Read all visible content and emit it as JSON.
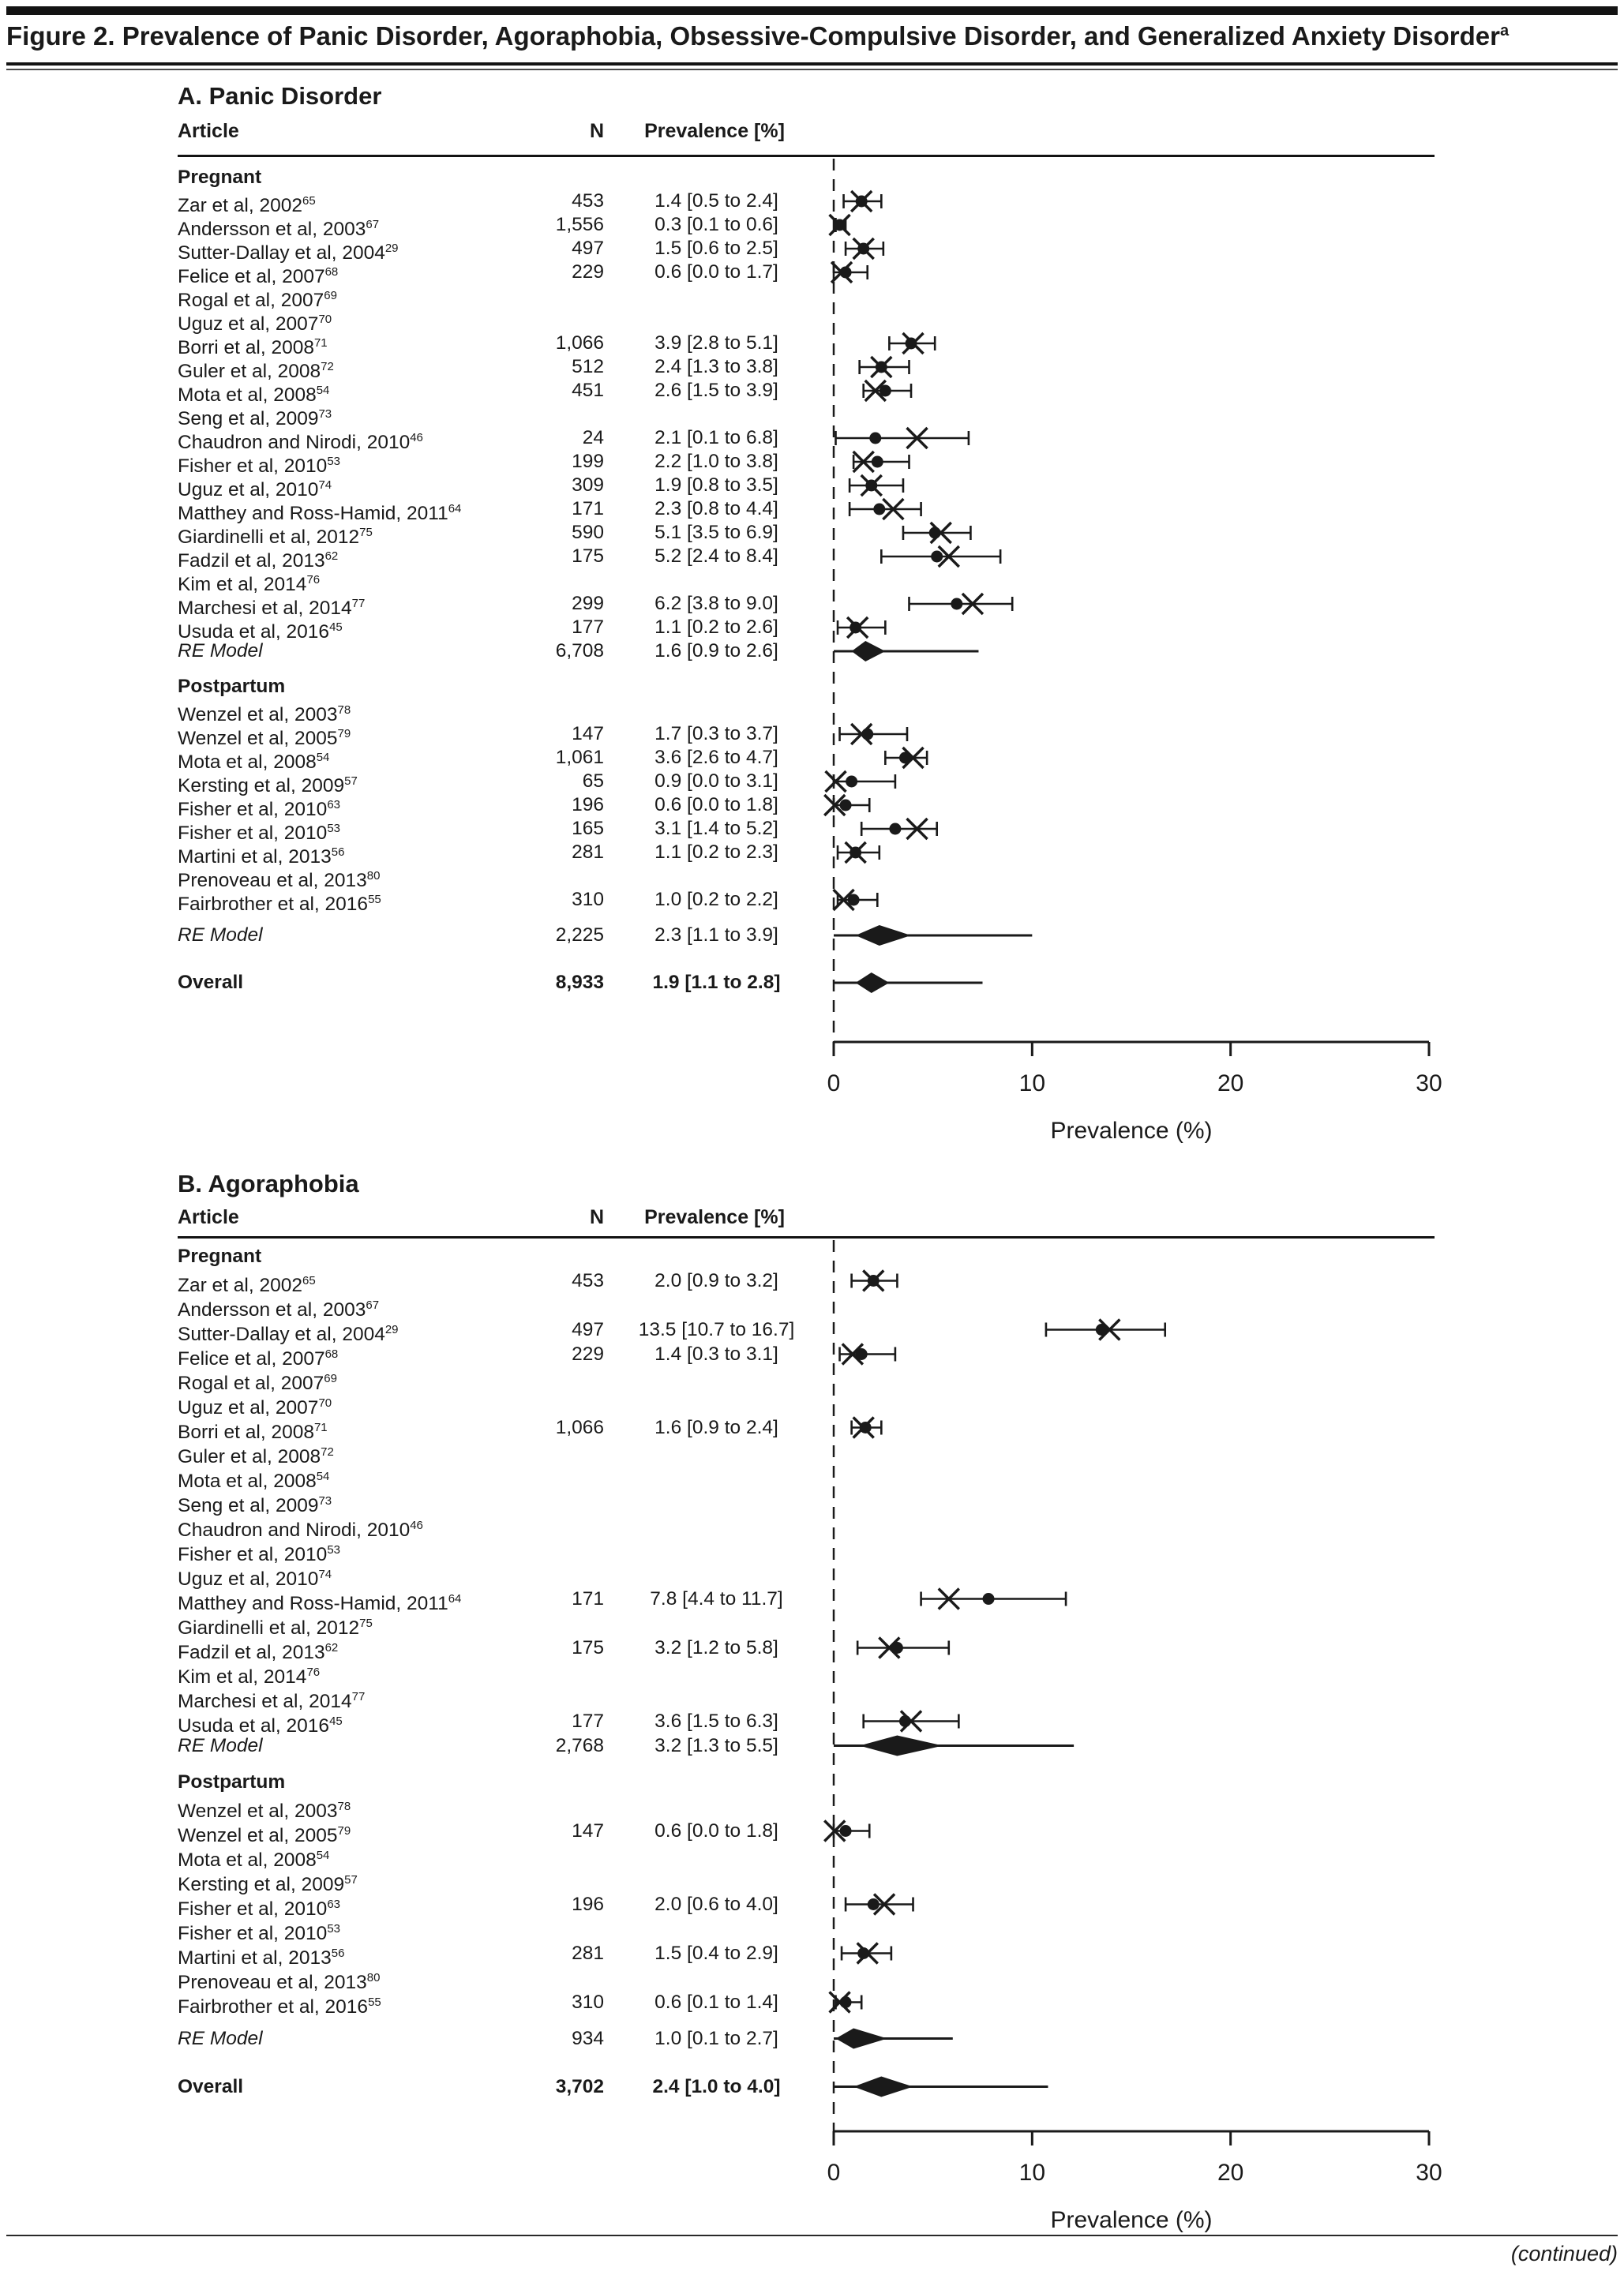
{
  "figure": {
    "title": "Figure 2. Prevalence of Panic Disorder, Agoraphobia, Obsessive-Compulsive Disorder, and Generalized Anxiety Disorder",
    "title_sup": "a",
    "continued": "(continued)"
  },
  "columns": {
    "article": "Article",
    "n": "N",
    "prevalence": "Prevalence [%]"
  },
  "axis": {
    "label": "Prevalence (%)",
    "ticks": [
      0,
      10,
      20,
      30
    ],
    "min": 0,
    "max": 30
  },
  "chart_data": [
    {
      "type": "forest",
      "panel_label": "A. Panic Disorder",
      "xlabel": "Prevalence (%)",
      "xlim": [
        0,
        30
      ],
      "xticks": [
        0,
        10,
        20,
        30
      ],
      "rows": [
        {
          "kind": "group",
          "article": "Pregnant"
        },
        {
          "kind": "study",
          "article": "Zar et al, 2002",
          "sup": "65",
          "n": "453",
          "prev": "1.4 [0.5 to 2.4]",
          "est": 1.4,
          "lo": 0.5,
          "hi": 2.4,
          "x": 1.4
        },
        {
          "kind": "study",
          "article": "Andersson et al, 2003",
          "sup": "67",
          "n": "1,556",
          "prev": "0.3 [0.1 to 0.6]",
          "est": 0.3,
          "lo": 0.1,
          "hi": 0.6,
          "x": 0.3
        },
        {
          "kind": "study",
          "article": "Sutter-Dallay et al, 2004",
          "sup": "29",
          "n": "497",
          "prev": "1.5 [0.6 to 2.5]",
          "est": 1.5,
          "lo": 0.6,
          "hi": 2.5,
          "x": 1.5
        },
        {
          "kind": "study",
          "article": "Felice et al, 2007",
          "sup": "68",
          "n": "229",
          "prev": "0.6 [0.0 to 1.7]",
          "est": 0.6,
          "lo": 0.0,
          "hi": 1.7,
          "x": 0.4
        },
        {
          "kind": "study",
          "article": "Rogal et al, 2007",
          "sup": "69"
        },
        {
          "kind": "study",
          "article": "Uguz et al, 2007",
          "sup": "70"
        },
        {
          "kind": "study",
          "article": "Borri et al, 2008",
          "sup": "71",
          "n": "1,066",
          "prev": "3.9 [2.8 to 5.1]",
          "est": 3.9,
          "lo": 2.8,
          "hi": 5.1,
          "x": 4.0
        },
        {
          "kind": "study",
          "article": "Guler et al, 2008",
          "sup": "72",
          "n": "512",
          "prev": "2.4 [1.3 to 3.8]",
          "est": 2.4,
          "lo": 1.3,
          "hi": 3.8,
          "x": 2.4
        },
        {
          "kind": "study",
          "article": "Mota et al, 2008",
          "sup": "54",
          "n": "451",
          "prev": "2.6 [1.5 to 3.9]",
          "est": 2.6,
          "lo": 1.5,
          "hi": 3.9,
          "x": 2.1
        },
        {
          "kind": "study",
          "article": "Seng et al, 2009",
          "sup": "73"
        },
        {
          "kind": "study",
          "article": "Chaudron and Nirodi, 2010",
          "sup": "46",
          "n": "24",
          "prev": "2.1 [0.1 to 6.8]",
          "est": 2.1,
          "lo": 0.1,
          "hi": 6.8,
          "x": 4.2
        },
        {
          "kind": "study",
          "article": "Fisher et al, 2010",
          "sup": "53",
          "n": "199",
          "prev": "2.2 [1.0 to 3.8]",
          "est": 2.2,
          "lo": 1.0,
          "hi": 3.8,
          "x": 1.5
        },
        {
          "kind": "study",
          "article": "Uguz et al, 2010",
          "sup": "74",
          "n": "309",
          "prev": "1.9 [0.8 to 3.5]",
          "est": 1.9,
          "lo": 0.8,
          "hi": 3.5,
          "x": 1.9
        },
        {
          "kind": "study",
          "article": "Matthey and Ross-Hamid, 2011",
          "sup": "64",
          "n": "171",
          "prev": "2.3 [0.8 to 4.4]",
          "est": 2.3,
          "lo": 0.8,
          "hi": 4.4,
          "x": 3.0
        },
        {
          "kind": "study",
          "article": "Giardinelli et al, 2012",
          "sup": "75",
          "n": "590",
          "prev": "5.1 [3.5 to 6.9]",
          "est": 5.1,
          "lo": 3.5,
          "hi": 6.9,
          "x": 5.4
        },
        {
          "kind": "study",
          "article": "Fadzil et al, 2013",
          "sup": "62",
          "n": "175",
          "prev": "5.2 [2.4 to 8.4]",
          "est": 5.2,
          "lo": 2.4,
          "hi": 8.4,
          "x": 5.8
        },
        {
          "kind": "study",
          "article": "Kim et al, 2014",
          "sup": "76"
        },
        {
          "kind": "study",
          "article": "Marchesi et al, 2014",
          "sup": "77",
          "n": "299",
          "prev": "6.2 [3.8 to 9.0]",
          "est": 6.2,
          "lo": 3.8,
          "hi": 9.0,
          "x": 7.0
        },
        {
          "kind": "study",
          "article": "Usuda et al, 2016",
          "sup": "45",
          "n": "177",
          "prev": "1.1 [0.2 to 2.6]",
          "est": 1.1,
          "lo": 0.2,
          "hi": 2.6,
          "x": 1.2
        },
        {
          "kind": "re",
          "article": "RE Model",
          "n": "6,708",
          "prev": "1.6 [0.9 to 2.6]",
          "est": 1.6,
          "lo": 0.9,
          "hi": 2.6,
          "pred": 7.3
        },
        {
          "kind": "gap",
          "h": 15
        },
        {
          "kind": "group",
          "article": "Postpartum"
        },
        {
          "kind": "study",
          "article": "Wenzel et al, 2003",
          "sup": "78"
        },
        {
          "kind": "study",
          "article": "Wenzel et al, 2005",
          "sup": "79",
          "n": "147",
          "prev": "1.7 [0.3 to 3.7]",
          "est": 1.7,
          "lo": 0.3,
          "hi": 3.7,
          "x": 1.4
        },
        {
          "kind": "study",
          "article": "Mota et al, 2008",
          "sup": "54",
          "n": "1,061",
          "prev": "3.6 [2.6 to 4.7]",
          "est": 3.6,
          "lo": 2.6,
          "hi": 4.7,
          "x": 4.0
        },
        {
          "kind": "study",
          "article": "Kersting et al, 2009",
          "sup": "57",
          "n": "65",
          "prev": "0.9 [0.0 to 3.1]",
          "est": 0.9,
          "lo": 0.0,
          "hi": 3.1,
          "x": 0.1
        },
        {
          "kind": "study",
          "article": "Fisher et al, 2010",
          "sup": "63",
          "n": "196",
          "prev": "0.6 [0.0 to 1.8]",
          "est": 0.6,
          "lo": 0.0,
          "hi": 1.8,
          "x": 0.05
        },
        {
          "kind": "study",
          "article": "Fisher et al, 2010",
          "sup": "53",
          "n": "165",
          "prev": "3.1 [1.4 to 5.2]",
          "est": 3.1,
          "lo": 1.4,
          "hi": 5.2,
          "x": 4.2
        },
        {
          "kind": "study",
          "article": "Martini et al, 2013",
          "sup": "56",
          "n": "281",
          "prev": "1.1 [0.2 to 2.3]",
          "est": 1.1,
          "lo": 0.2,
          "hi": 2.3,
          "x": 1.1
        },
        {
          "kind": "study",
          "article": "Prenoveau et al, 2013",
          "sup": "80"
        },
        {
          "kind": "study",
          "article": "Fairbrother et al, 2016",
          "sup": "55",
          "n": "310",
          "prev": "1.0 [0.2 to 2.2]",
          "est": 1.0,
          "lo": 0.2,
          "hi": 2.2,
          "x": 0.5
        },
        {
          "kind": "gap",
          "h": 15
        },
        {
          "kind": "re",
          "article": "RE Model",
          "n": "2,225",
          "prev": "2.3 [1.1 to 3.9]",
          "est": 2.3,
          "lo": 1.1,
          "hi": 3.9,
          "pred": 10.0
        },
        {
          "kind": "gap",
          "h": 30
        },
        {
          "kind": "overall",
          "article": "Overall",
          "n": "8,933",
          "prev": "1.9 [1.1 to 2.8]",
          "est": 1.9,
          "lo": 1.1,
          "hi": 2.8,
          "pred": 7.5
        }
      ]
    },
    {
      "type": "forest",
      "panel_label": "B. Agoraphobia",
      "xlabel": "Prevalence (%)",
      "xlim": [
        0,
        30
      ],
      "xticks": [
        0,
        10,
        20,
        30
      ],
      "rows": [
        {
          "kind": "group",
          "article": "Pregnant"
        },
        {
          "kind": "study",
          "article": "Zar et al, 2002",
          "sup": "65",
          "n": "453",
          "prev": "2.0 [0.9 to 3.2]",
          "est": 2.0,
          "lo": 0.9,
          "hi": 3.2,
          "x": 2.0
        },
        {
          "kind": "study",
          "article": "Andersson et al, 2003",
          "sup": "67"
        },
        {
          "kind": "study",
          "article": "Sutter-Dallay et al, 2004",
          "sup": "29",
          "n": "497",
          "prev": "13.5 [10.7 to 16.7]",
          "est": 13.5,
          "lo": 10.7,
          "hi": 16.7,
          "x": 13.9
        },
        {
          "kind": "study",
          "article": "Felice et al, 2007",
          "sup": "68",
          "n": "229",
          "prev": "1.4 [0.3 to 3.1]",
          "est": 1.4,
          "lo": 0.3,
          "hi": 3.1,
          "x": 0.95
        },
        {
          "kind": "study",
          "article": "Rogal et al, 2007",
          "sup": "69"
        },
        {
          "kind": "study",
          "article": "Uguz et al, 2007",
          "sup": "70"
        },
        {
          "kind": "study",
          "article": "Borri et al, 2008",
          "sup": "71",
          "n": "1,066",
          "prev": "1.6 [0.9 to 2.4]",
          "est": 1.6,
          "lo": 0.9,
          "hi": 2.4,
          "x": 1.5
        },
        {
          "kind": "study",
          "article": "Guler et al, 2008",
          "sup": "72"
        },
        {
          "kind": "study",
          "article": "Mota et al, 2008",
          "sup": "54"
        },
        {
          "kind": "study",
          "article": "Seng et al, 2009",
          "sup": "73"
        },
        {
          "kind": "study",
          "article": "Chaudron and Nirodi, 2010",
          "sup": "46"
        },
        {
          "kind": "study",
          "article": "Fisher et al, 2010",
          "sup": "53"
        },
        {
          "kind": "study",
          "article": "Uguz et al, 2010",
          "sup": "74"
        },
        {
          "kind": "study",
          "article": "Matthey and Ross-Hamid, 2011",
          "sup": "64",
          "n": "171",
          "prev": "7.8 [4.4 to 11.7]",
          "est": 7.8,
          "lo": 4.4,
          "hi": 11.7,
          "x": 5.8
        },
        {
          "kind": "study",
          "article": "Giardinelli et al, 2012",
          "sup": "75"
        },
        {
          "kind": "study",
          "article": "Fadzil et al, 2013",
          "sup": "62",
          "n": "175",
          "prev": "3.2 [1.2 to 5.8]",
          "est": 3.2,
          "lo": 1.2,
          "hi": 5.8,
          "x": 2.8
        },
        {
          "kind": "study",
          "article": "Kim et al, 2014",
          "sup": "76"
        },
        {
          "kind": "study",
          "article": "Marchesi et al, 2014",
          "sup": "77"
        },
        {
          "kind": "study",
          "article": "Usuda et al, 2016",
          "sup": "45",
          "n": "177",
          "prev": "3.6 [1.5 to 6.3]",
          "est": 3.6,
          "lo": 1.5,
          "hi": 6.3,
          "x": 3.9
        },
        {
          "kind": "re",
          "article": "RE Model",
          "n": "2,768",
          "prev": "3.2 [1.3 to 5.5]",
          "est": 3.2,
          "lo": 1.3,
          "hi": 5.5,
          "pred": 12.1
        },
        {
          "kind": "gap",
          "h": 15
        },
        {
          "kind": "group",
          "article": "Postpartum"
        },
        {
          "kind": "study",
          "article": "Wenzel et al, 2003",
          "sup": "78"
        },
        {
          "kind": "study",
          "article": "Wenzel et al, 2005",
          "sup": "79",
          "n": "147",
          "prev": "0.6 [0.0 to 1.8]",
          "est": 0.6,
          "lo": 0.0,
          "hi": 1.8,
          "x": 0.05
        },
        {
          "kind": "study",
          "article": "Mota et al, 2008",
          "sup": "54"
        },
        {
          "kind": "study",
          "article": "Kersting et al, 2009",
          "sup": "57"
        },
        {
          "kind": "study",
          "article": "Fisher et al, 2010",
          "sup": "63",
          "n": "196",
          "prev": "2.0 [0.6 to 4.0]",
          "est": 2.0,
          "lo": 0.6,
          "hi": 4.0,
          "x": 2.55
        },
        {
          "kind": "study",
          "article": "Fisher et al, 2010",
          "sup": "53"
        },
        {
          "kind": "study",
          "article": "Martini et al, 2013",
          "sup": "56",
          "n": "281",
          "prev": "1.5 [0.4 to 2.9]",
          "est": 1.5,
          "lo": 0.4,
          "hi": 2.9,
          "x": 1.7
        },
        {
          "kind": "study",
          "article": "Prenoveau et al, 2013",
          "sup": "80"
        },
        {
          "kind": "study",
          "article": "Fairbrother et al, 2016",
          "sup": "55",
          "n": "310",
          "prev": "0.6 [0.1 to 1.4]",
          "est": 0.6,
          "lo": 0.1,
          "hi": 1.4,
          "x": 0.3
        },
        {
          "kind": "gap",
          "h": 15
        },
        {
          "kind": "re",
          "article": "RE Model",
          "n": "934",
          "prev": "1.0 [0.1 to 2.7]",
          "est": 1.0,
          "lo": 0.1,
          "hi": 2.7,
          "pred": 6.0
        },
        {
          "kind": "gap",
          "h": 30
        },
        {
          "kind": "overall",
          "article": "Overall",
          "n": "3,702",
          "prev": "2.4 [1.0 to 4.0]",
          "est": 2.4,
          "lo": 1.0,
          "hi": 4.0,
          "pred": 10.8
        }
      ]
    }
  ]
}
